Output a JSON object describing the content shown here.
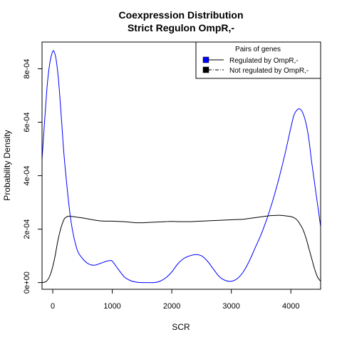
{
  "chart_data": {
    "type": "line",
    "title": "Coexpression Distribution",
    "subtitle": "Strict Regulon OmpR,-",
    "xlabel": "SCR",
    "ylabel": "Probability Density",
    "xlim": [
      -180,
      4500
    ],
    "ylim": [
      -2.5e-05,
      0.0009
    ],
    "x_ticks": [
      0,
      1000,
      2000,
      3000,
      4000
    ],
    "x_tick_labels": [
      "0",
      "1000",
      "2000",
      "3000",
      "4000"
    ],
    "y_ticks": [
      0,
      0.0002,
      0.0004,
      0.0006,
      0.0008
    ],
    "y_tick_labels": [
      "0e+00",
      "2e-04",
      "4e-04",
      "6e-04",
      "8e-04"
    ],
    "grid": false,
    "legend": {
      "title": "Pairs of genes",
      "position": "top-right",
      "entries": [
        "Regulated by  OmpR,-",
        "Not regulated by  OmpR,-"
      ]
    },
    "series": [
      {
        "name": "Regulated by  OmpR,-",
        "color": "#0000ff",
        "x": [
          -180,
          -100,
          -50,
          0,
          30,
          60,
          100,
          150,
          200,
          300,
          400,
          500,
          600,
          700,
          800,
          900,
          950,
          1000,
          1100,
          1200,
          1300,
          1400,
          1500,
          1600,
          1700,
          1800,
          1900,
          2000,
          2100,
          2200,
          2300,
          2400,
          2500,
          2600,
          2700,
          2800,
          2900,
          3000,
          3100,
          3200,
          3300,
          3400,
          3500,
          3600,
          3700,
          3800,
          3900,
          4000,
          4050,
          4100,
          4150,
          4200,
          4250,
          4300,
          4350,
          4400,
          4450,
          4500
        ],
        "y": [
          0.00046,
          0.00072,
          0.00082,
          0.000865,
          0.00086,
          0.00083,
          0.00075,
          0.0006,
          0.00045,
          0.00024,
          0.00013,
          9e-05,
          7e-05,
          6.5e-05,
          7.2e-05,
          8e-05,
          8.2e-05,
          8e-05,
          5e-05,
          2.2e-05,
          8e-06,
          2e-06,
          0.0,
          0.0,
          0.0,
          5e-06,
          1.8e-05,
          4e-05,
          7e-05,
          9e-05,
          0.0001,
          0.000105,
          0.0001,
          8e-05,
          5e-05,
          2.2e-05,
          8e-06,
          5e-06,
          1.5e-05,
          4e-05,
          8e-05,
          0.00013,
          0.00018,
          0.00024,
          0.00031,
          0.00039,
          0.00048,
          0.00058,
          0.000625,
          0.000645,
          0.00065,
          0.000635,
          0.0006,
          0.00054,
          0.00045,
          0.00037,
          0.00029,
          0.00021
        ]
      },
      {
        "name": "Not regulated by  OmpR,-",
        "color": "#000000",
        "x": [
          -180,
          -120,
          -80,
          -40,
          0,
          40,
          80,
          120,
          160,
          200,
          260,
          300,
          400,
          500,
          600,
          700,
          800,
          900,
          1000,
          1100,
          1200,
          1300,
          1400,
          1500,
          1600,
          1700,
          1800,
          1900,
          2000,
          2100,
          2200,
          2300,
          2400,
          2500,
          2600,
          2700,
          2800,
          2900,
          3000,
          3100,
          3200,
          3300,
          3400,
          3500,
          3600,
          3700,
          3800,
          3900,
          4000,
          4050,
          4100,
          4150,
          4200,
          4250,
          4300,
          4350,
          4400,
          4450,
          4500
        ],
        "y": [
          0.0,
          3e-06,
          1.2e-05,
          3e-05,
          6e-05,
          0.0001,
          0.00015,
          0.00019,
          0.00022,
          0.00024,
          0.000248,
          0.000248,
          0.000245,
          0.000242,
          0.000238,
          0.000234,
          0.000231,
          0.00023,
          0.00023,
          0.000229,
          0.000228,
          0.000226,
          0.000224,
          0.000224,
          0.000225,
          0.000226,
          0.000227,
          0.000228,
          0.000229,
          0.000228,
          0.000228,
          0.000228,
          0.000229,
          0.00023,
          0.000231,
          0.000232,
          0.000233,
          0.000234,
          0.000235,
          0.000236,
          0.000237,
          0.00024,
          0.000243,
          0.000246,
          0.000249,
          0.000251,
          0.000252,
          0.00025,
          0.000247,
          0.000243,
          0.000235,
          0.00022,
          0.0002,
          0.00017,
          0.00013,
          9e-05,
          5e-05,
          2e-05,
          5e-06
        ]
      }
    ]
  }
}
